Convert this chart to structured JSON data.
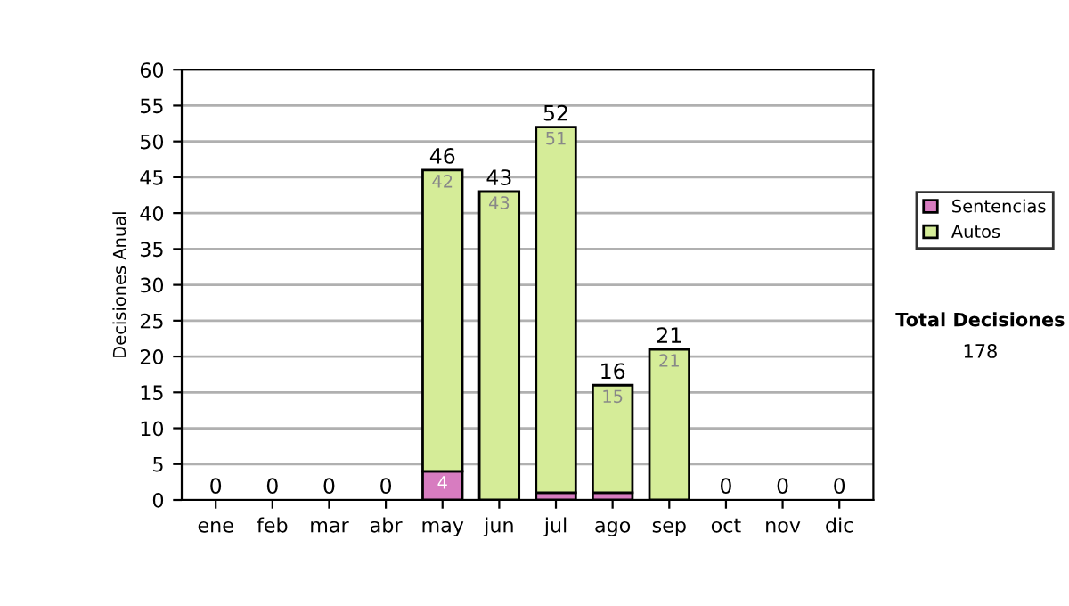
{
  "chart_data": {
    "type": "bar",
    "stacked": true,
    "ylabel": "Decisiones Anual",
    "categories": [
      "ene",
      "feb",
      "mar",
      "abr",
      "may",
      "jun",
      "jul",
      "ago",
      "sep",
      "oct",
      "nov",
      "dic"
    ],
    "series": [
      {
        "name": "Sentencias",
        "color": "#d77cc0",
        "values": [
          0,
          0,
          0,
          0,
          4,
          0,
          1,
          1,
          0,
          0,
          0,
          0
        ],
        "value_labels": [
          null,
          null,
          null,
          null,
          "4",
          null,
          null,
          null,
          null,
          null,
          null,
          null
        ]
      },
      {
        "name": "Autos",
        "color": "#d5ec98",
        "values": [
          0,
          0,
          0,
          0,
          42,
          43,
          51,
          15,
          21,
          0,
          0,
          0
        ],
        "value_labels": [
          null,
          null,
          null,
          null,
          "42",
          "43",
          "51",
          "15",
          "21",
          null,
          null,
          null
        ]
      }
    ],
    "totals": [
      "0",
      "0",
      "0",
      "0",
      "46",
      "43",
      "52",
      "16",
      "21",
      "0",
      "0",
      "0"
    ],
    "ylim": [
      0,
      60
    ],
    "yticks": [
      0,
      5,
      10,
      15,
      20,
      25,
      30,
      35,
      40,
      45,
      50,
      55,
      60
    ],
    "grid": "y",
    "legend": "right",
    "annotations": [
      "Total Decisiones",
      "178"
    ]
  }
}
